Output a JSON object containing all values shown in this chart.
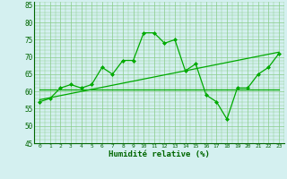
{
  "x": [
    0,
    1,
    2,
    3,
    4,
    5,
    6,
    7,
    8,
    9,
    10,
    11,
    12,
    13,
    14,
    15,
    16,
    17,
    18,
    19,
    20,
    21,
    22,
    23
  ],
  "y_main": [
    57,
    58,
    61,
    62,
    61,
    62,
    67,
    65,
    69,
    69,
    77,
    77,
    74,
    75,
    66,
    68,
    59,
    57,
    52,
    61,
    61,
    65,
    67,
    71
  ],
  "y_trend": [
    57.6,
    58.2,
    58.8,
    59.4,
    60.0,
    60.6,
    61.2,
    61.8,
    62.4,
    63.0,
    63.6,
    64.2,
    64.8,
    65.4,
    66.0,
    66.6,
    67.2,
    67.8,
    68.4,
    69.0,
    69.6,
    70.2,
    70.8,
    71.4
  ],
  "y_flat": [
    60.5,
    60.5,
    60.5,
    60.5,
    60.5,
    60.5,
    60.5,
    60.5,
    60.5,
    60.5,
    60.5,
    60.5,
    60.5,
    60.5,
    60.5,
    60.5,
    60.5,
    60.5,
    60.5,
    60.5,
    60.5,
    60.5,
    60.5,
    60.5
  ],
  "xlim": [
    0,
    23
  ],
  "ylim": [
    45,
    86
  ],
  "yticks": [
    45,
    50,
    55,
    60,
    65,
    70,
    75,
    80,
    85
  ],
  "xtick_labels": [
    "0",
    "1",
    "2",
    "3",
    "4",
    "5",
    "6",
    "7",
    "8",
    "9",
    "10",
    "11",
    "12",
    "13",
    "14",
    "15",
    "16",
    "17",
    "18",
    "19",
    "20",
    "21",
    "22",
    "23"
  ],
  "xlabel": "Humidité relative (%)",
  "line_color": "#00aa00",
  "bg_color": "#d4f0f0",
  "grid_color": "#88cc88",
  "text_color": "#006600",
  "marker": "D",
  "markersize": 2.0,
  "linewidth": 0.9
}
